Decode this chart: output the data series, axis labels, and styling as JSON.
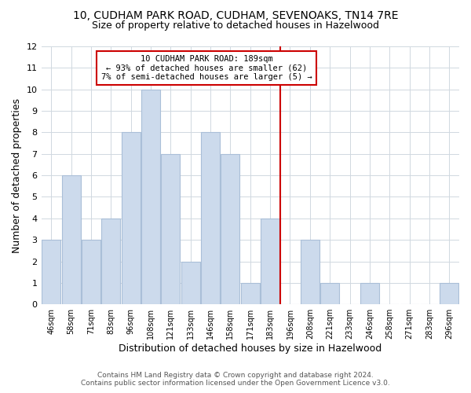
{
  "title": "10, CUDHAM PARK ROAD, CUDHAM, SEVENOAKS, TN14 7RE",
  "subtitle": "Size of property relative to detached houses in Hazelwood",
  "xlabel": "Distribution of detached houses by size in Hazelwood",
  "ylabel": "Number of detached properties",
  "categories": [
    "46sqm",
    "58sqm",
    "71sqm",
    "83sqm",
    "96sqm",
    "108sqm",
    "121sqm",
    "133sqm",
    "146sqm",
    "158sqm",
    "171sqm",
    "183sqm",
    "196sqm",
    "208sqm",
    "221sqm",
    "233sqm",
    "246sqm",
    "258sqm",
    "271sqm",
    "283sqm",
    "296sqm"
  ],
  "values": [
    3,
    6,
    3,
    4,
    8,
    10,
    7,
    2,
    8,
    7,
    1,
    4,
    0,
    3,
    1,
    0,
    1,
    0,
    0,
    0,
    1
  ],
  "bar_color": "#ccdaec",
  "bar_edgecolor": "#aabfd8",
  "annotation_title": "10 CUDHAM PARK ROAD: 189sqm",
  "annotation_line1": "← 93% of detached houses are smaller (62)",
  "annotation_line2": "7% of semi-detached houses are larger (5) →",
  "annotation_box_facecolor": "#ffffff",
  "annotation_box_edgecolor": "#cc0000",
  "ref_line_color": "#cc0000",
  "grid_color": "#d0d8e0",
  "ylim": [
    0,
    12
  ],
  "yticks": [
    0,
    1,
    2,
    3,
    4,
    5,
    6,
    7,
    8,
    9,
    10,
    11,
    12
  ],
  "footer_line1": "Contains HM Land Registry data © Crown copyright and database right 2024.",
  "footer_line2": "Contains public sector information licensed under the Open Government Licence v3.0.",
  "background_color": "#ffffff",
  "axes_background": "#ffffff",
  "title_fontsize": 10,
  "subtitle_fontsize": 9
}
